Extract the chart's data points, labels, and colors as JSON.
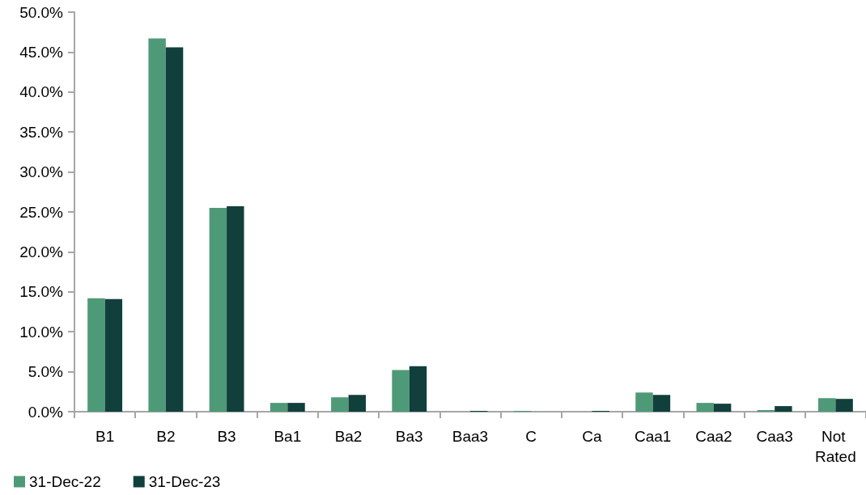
{
  "chart_data": {
    "type": "bar",
    "categories": [
      "B1",
      "B2",
      "B3",
      "Ba1",
      "Ba2",
      "Ba3",
      "Baa3",
      "C",
      "Ca",
      "Caa1",
      "Caa2",
      "Caa3",
      "Not Rated"
    ],
    "series": [
      {
        "name": "31-Dec-22",
        "color": "#4e9a78",
        "values": [
          14.2,
          46.7,
          25.5,
          1.1,
          1.8,
          5.2,
          0,
          0.1,
          0,
          2.4,
          1.1,
          0.2,
          1.7
        ]
      },
      {
        "name": "31-Dec-23",
        "color": "#113f3c",
        "values": [
          14.1,
          45.6,
          25.7,
          1.1,
          2.1,
          5.7,
          0.1,
          0,
          0.1,
          2.1,
          1.0,
          0.7,
          1.6
        ]
      }
    ],
    "ylim": [
      0,
      50
    ],
    "yticks": [
      {
        "value": 0,
        "label": "0.0%"
      },
      {
        "value": 5,
        "label": "5.0%"
      },
      {
        "value": 10,
        "label": "10.0%"
      },
      {
        "value": 15,
        "label": "15.0%"
      },
      {
        "value": 20,
        "label": "20.0%"
      },
      {
        "value": 25,
        "label": "25.0%"
      },
      {
        "value": 30,
        "label": "30.0%"
      },
      {
        "value": 35,
        "label": "35.0%"
      },
      {
        "value": 40,
        "label": "40.0%"
      },
      {
        "value": 45,
        "label": "45.0%"
      },
      {
        "value": 50,
        "label": "50.0%"
      }
    ],
    "grid": false,
    "legend": "bottom left"
  }
}
